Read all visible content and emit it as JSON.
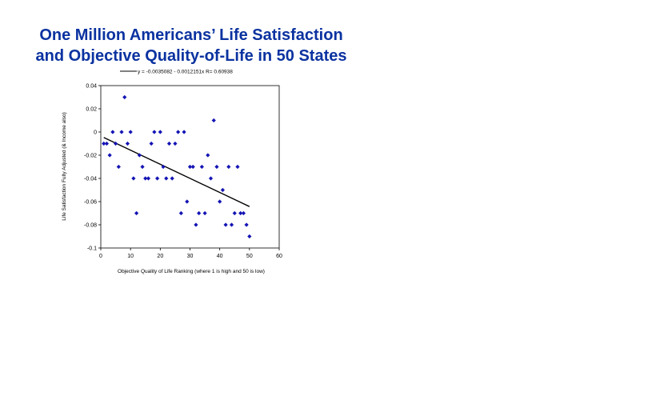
{
  "chart_data": {
    "type": "scatter",
    "title_line1": "One Million Americans’ Life Satisfaction",
    "title_line2": "and Objective Quality-of-Life in 50 States",
    "xlabel": "Objective Quality of Life Ranking (where 1 is high and 50 is low)",
    "ylabel": "Life Satisfaction Fully Adjusted (& Income also)",
    "legend_text": "y = -0.0035082 - 0.0012151x   R= 0.60938",
    "xlim": [
      0,
      60
    ],
    "ylim": [
      -0.1,
      0.04
    ],
    "xticks": [
      "0",
      "10",
      "20",
      "30",
      "40",
      "50",
      "60"
    ],
    "yticks": [
      "0.04",
      "0.02",
      "0",
      "-0.02",
      "-0.04",
      "-0.06",
      "-0.08",
      "-0.1"
    ],
    "point_color": "#1414b4",
    "line_color": "#000000",
    "trendline": {
      "intercept": -0.0035082,
      "slope": -0.0012151,
      "x_start": 1,
      "x_end": 50
    },
    "points": [
      [
        1,
        -0.01
      ],
      [
        2,
        -0.01
      ],
      [
        3,
        -0.02
      ],
      [
        4,
        0
      ],
      [
        5,
        -0.01
      ],
      [
        6,
        -0.03
      ],
      [
        7,
        0
      ],
      [
        8,
        0.03
      ],
      [
        9,
        -0.01
      ],
      [
        10,
        0
      ],
      [
        11,
        -0.04
      ],
      [
        12,
        -0.07
      ],
      [
        13,
        -0.02
      ],
      [
        14,
        -0.03
      ],
      [
        15,
        -0.04
      ],
      [
        16,
        -0.04
      ],
      [
        17,
        -0.01
      ],
      [
        18,
        0
      ],
      [
        19,
        -0.04
      ],
      [
        20,
        0
      ],
      [
        21,
        -0.03
      ],
      [
        22,
        -0.04
      ],
      [
        23,
        -0.01
      ],
      [
        24,
        -0.04
      ],
      [
        25,
        -0.01
      ],
      [
        26,
        0
      ],
      [
        27,
        -0.07
      ],
      [
        28,
        0
      ],
      [
        29,
        -0.06
      ],
      [
        30,
        -0.03
      ],
      [
        31,
        -0.03
      ],
      [
        32,
        -0.08
      ],
      [
        33,
        -0.07
      ],
      [
        34,
        -0.03
      ],
      [
        35,
        -0.07
      ],
      [
        36,
        -0.02
      ],
      [
        37,
        -0.04
      ],
      [
        38,
        0.01
      ],
      [
        39,
        -0.03
      ],
      [
        40,
        -0.06
      ],
      [
        41,
        -0.05
      ],
      [
        42,
        -0.08
      ],
      [
        43,
        -0.03
      ],
      [
        44,
        -0.08
      ],
      [
        45,
        -0.07
      ],
      [
        46,
        -0.03
      ],
      [
        47,
        -0.07
      ],
      [
        48,
        -0.07
      ],
      [
        49,
        -0.08
      ],
      [
        50,
        -0.09
      ]
    ]
  }
}
